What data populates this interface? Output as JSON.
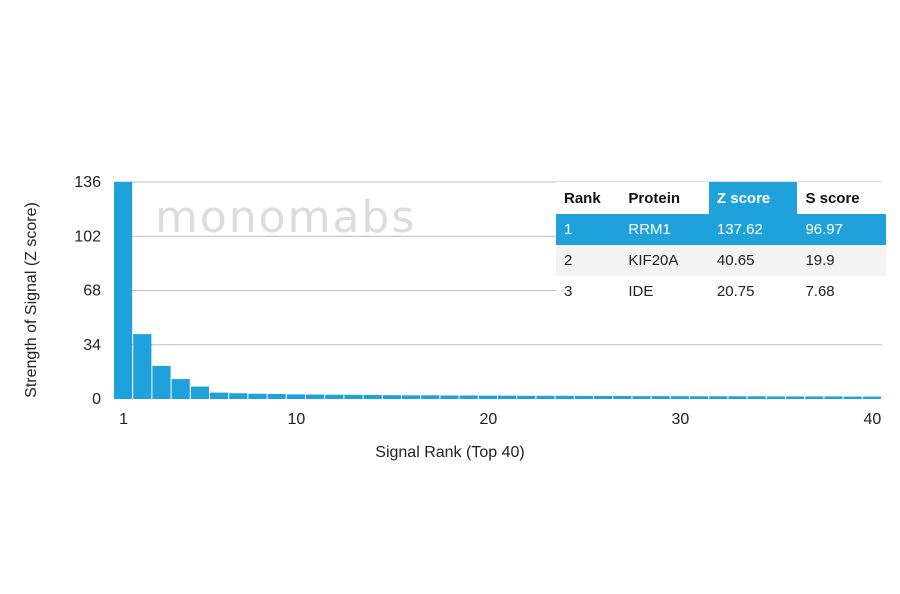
{
  "watermark": "monomabs",
  "chart_data": {
    "type": "bar",
    "xlabel": "Signal Rank (Top 40)",
    "ylabel": "Strength of Signal (Z score)",
    "ylim": [
      0,
      136
    ],
    "yticks": [
      0,
      34,
      68,
      102,
      136
    ],
    "xticks": [
      1,
      10,
      20,
      30,
      40
    ],
    "grid": "horizontal",
    "bar_color": "#1fa2dc",
    "x": [
      1,
      2,
      3,
      4,
      5,
      6,
      7,
      8,
      9,
      10,
      11,
      12,
      13,
      14,
      15,
      16,
      17,
      18,
      19,
      20,
      21,
      22,
      23,
      24,
      25,
      26,
      27,
      28,
      29,
      30,
      31,
      32,
      33,
      34,
      35,
      36,
      37,
      38,
      39,
      40
    ],
    "values": [
      137.62,
      40.65,
      20.75,
      12.5,
      7.8,
      4.0,
      3.6,
      3.3,
      3.1,
      2.9,
      2.8,
      2.7,
      2.6,
      2.5,
      2.4,
      2.3,
      2.3,
      2.2,
      2.2,
      2.1,
      2.1,
      2.0,
      2.0,
      2.0,
      1.9,
      1.9,
      1.9,
      1.8,
      1.8,
      1.8,
      1.7,
      1.7,
      1.7,
      1.7,
      1.6,
      1.6,
      1.6,
      1.6,
      1.5,
      1.5
    ]
  },
  "table": {
    "headers": [
      "Rank",
      "Protein",
      "Z score",
      "S score"
    ],
    "highlight_color": "#1fa2dc",
    "rows": [
      [
        "1",
        "RRM1",
        "137.62",
        "96.97"
      ],
      [
        "2",
        "KIF20A",
        "40.65",
        "19.9"
      ],
      [
        "3",
        "IDE",
        "20.75",
        "7.68"
      ]
    ]
  }
}
